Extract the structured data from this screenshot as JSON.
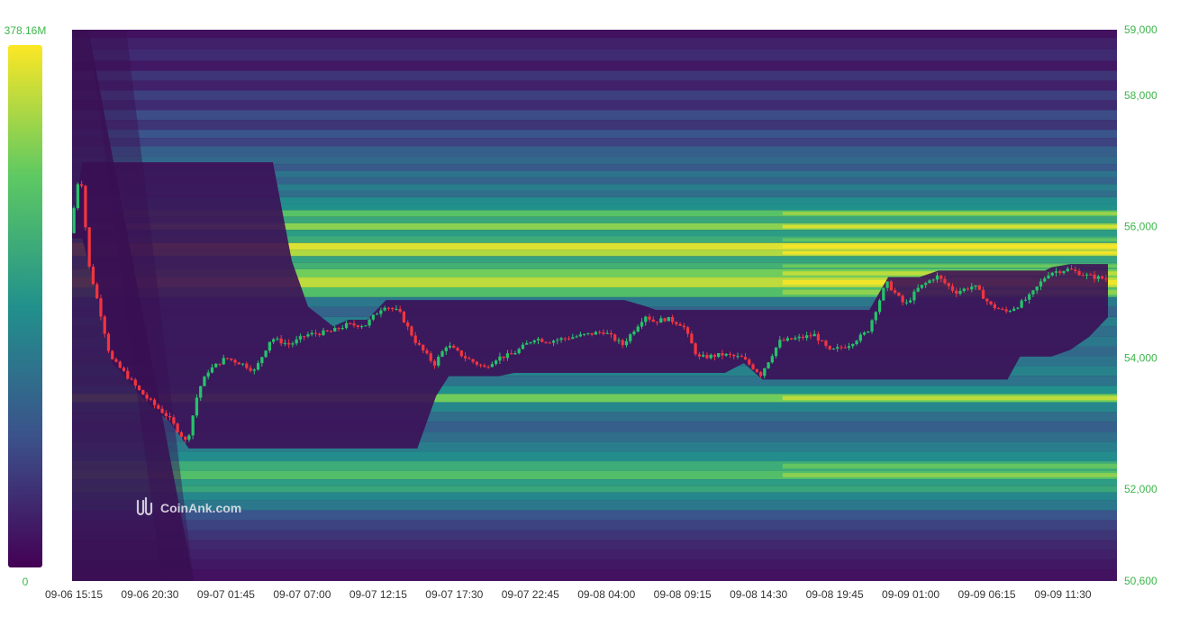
{
  "chart_data": {
    "type": "heatmap",
    "subtype": "liquidation-heatmap-with-candlesticks",
    "watermark": "CoinAnk.com",
    "colorbar": {
      "min_label": "0",
      "max_label": "378.16M",
      "label_color": "#3cb64a",
      "colors": [
        "#440154",
        "#3b528b",
        "#21918c",
        "#5ec962",
        "#fde725"
      ]
    },
    "y_axis": {
      "position": "right",
      "min": 50600,
      "max": 59000,
      "ticks": [
        "59,000",
        "58,000",
        "56,000",
        "54,000",
        "52,000",
        "50,600"
      ],
      "tick_values": [
        59000,
        58000,
        56000,
        54000,
        52000,
        50600
      ],
      "label_color": "#3cb64a"
    },
    "x_axis": {
      "ticks": [
        "09-06 15:15",
        "09-06 20:30",
        "09-07 01:45",
        "09-07 07:00",
        "09-07 12:15",
        "09-07 17:30",
        "09-07 22:45",
        "09-08 04:00",
        "09-08 09:15",
        "09-08 14:30",
        "09-08 19:45",
        "09-09 01:00",
        "09-09 06:15",
        "09-09 11:30"
      ],
      "label_color": "#333333"
    },
    "candle_colors": {
      "up": "#26c36a",
      "down": "#f0353f"
    },
    "price_path": {
      "t": [
        0,
        0.8,
        1.5,
        2.4,
        3.2,
        4.2,
        5.5,
        6.3,
        7.8,
        9.3,
        10.2,
        11.0,
        12.4,
        13.8,
        14.7,
        16.0,
        17.5,
        18.8,
        20.8,
        22.0,
        23.5,
        25.0,
        26.2,
        27.5,
        29.0,
        30.0,
        31.5,
        33.0,
        34.0,
        35.2,
        37.0,
        38.0,
        39.5,
        41.0,
        42.5,
        44.0,
        45.8,
        46.5,
        47.5,
        48.8,
        50.0,
        52.0,
        53.5,
        55.0,
        56.5,
        58.0,
        59.3,
        60.5,
        62.0,
        63.5,
        65.0,
        66.5,
        67.5,
        69.0,
        70.5,
        72.0,
        73.3,
        74.5,
        75.5,
        76.5,
        77.5,
        78.0,
        79.5,
        81.0,
        82.5
      ],
      "price": [
        55900,
        56900,
        55400,
        54700,
        54000,
        53800,
        53500,
        53350,
        53100,
        52700,
        53500,
        53800,
        54000,
        53900,
        53800,
        54300,
        54200,
        54350,
        54400,
        54500,
        54500,
        54800,
        54700,
        54250,
        53900,
        54200,
        54000,
        53850,
        54000,
        54050,
        54300,
        54250,
        54300,
        54350,
        54400,
        54200,
        54650,
        54550,
        54600,
        54500,
        54000,
        54050,
        54000,
        53750,
        54250,
        54300,
        54350,
        54100,
        54200,
        54400,
        55150,
        54800,
        55050,
        55250,
        55000,
        55100,
        54800,
        54700,
        54800,
        54950,
        55200,
        55300,
        55350,
        55250,
        55200
      ]
    },
    "price_bands": [
      {
        "price": 58950,
        "intensity": 0.05
      },
      {
        "price": 58800,
        "intensity": 0.1
      },
      {
        "price": 58600,
        "intensity": 0.13
      },
      {
        "price": 58450,
        "intensity": 0.07
      },
      {
        "price": 58300,
        "intensity": 0.16
      },
      {
        "price": 58150,
        "intensity": 0.1
      },
      {
        "price": 58000,
        "intensity": 0.19
      },
      {
        "price": 57850,
        "intensity": 0.13
      },
      {
        "price": 57700,
        "intensity": 0.23
      },
      {
        "price": 57550,
        "intensity": 0.16
      },
      {
        "price": 57400,
        "intensity": 0.26
      },
      {
        "price": 57300,
        "intensity": 0.2
      },
      {
        "price": 57150,
        "intensity": 0.3
      },
      {
        "price": 57000,
        "intensity": 0.34
      },
      {
        "price": 56900,
        "intensity": 0.28
      },
      {
        "price": 56800,
        "intensity": 0.38
      },
      {
        "price": 56700,
        "intensity": 0.32
      },
      {
        "price": 56600,
        "intensity": 0.42
      },
      {
        "price": 56500,
        "intensity": 0.36
      },
      {
        "price": 56400,
        "intensity": 0.48
      },
      {
        "price": 56300,
        "intensity": 0.5
      },
      {
        "price": 56200,
        "intensity": 0.72
      },
      {
        "price": 56100,
        "intensity": 0.6
      },
      {
        "price": 56000,
        "intensity": 0.82
      },
      {
        "price": 55900,
        "intensity": 0.55
      },
      {
        "price": 55800,
        "intensity": 0.62
      },
      {
        "price": 55700,
        "intensity": 0.95
      },
      {
        "price": 55600,
        "intensity": 0.88
      },
      {
        "price": 55500,
        "intensity": 0.58
      },
      {
        "price": 55400,
        "intensity": 0.64
      },
      {
        "price": 55300,
        "intensity": 0.78
      },
      {
        "price": 55150,
        "intensity": 0.9
      },
      {
        "price": 55000,
        "intensity": 0.7
      },
      {
        "price": 54850,
        "intensity": 0.4
      },
      {
        "price": 54700,
        "intensity": 0.32
      },
      {
        "price": 54550,
        "intensity": 0.42
      },
      {
        "price": 54400,
        "intensity": 0.36
      },
      {
        "price": 54250,
        "intensity": 0.4
      },
      {
        "price": 54100,
        "intensity": 0.34
      },
      {
        "price": 53950,
        "intensity": 0.38
      },
      {
        "price": 53800,
        "intensity": 0.44
      },
      {
        "price": 53650,
        "intensity": 0.38
      },
      {
        "price": 53500,
        "intensity": 0.5
      },
      {
        "price": 53400,
        "intensity": 0.78
      },
      {
        "price": 53250,
        "intensity": 0.46
      },
      {
        "price": 53100,
        "intensity": 0.36
      },
      {
        "price": 52950,
        "intensity": 0.3
      },
      {
        "price": 52800,
        "intensity": 0.36
      },
      {
        "price": 52650,
        "intensity": 0.42
      },
      {
        "price": 52500,
        "intensity": 0.48
      },
      {
        "price": 52350,
        "intensity": 0.62
      },
      {
        "price": 52200,
        "intensity": 0.7
      },
      {
        "price": 52100,
        "intensity": 0.55
      },
      {
        "price": 52000,
        "intensity": 0.6
      },
      {
        "price": 51900,
        "intensity": 0.46
      },
      {
        "price": 51750,
        "intensity": 0.4
      },
      {
        "price": 51600,
        "intensity": 0.26
      },
      {
        "price": 51450,
        "intensity": 0.2
      },
      {
        "price": 51300,
        "intensity": 0.16
      },
      {
        "price": 51150,
        "intensity": 0.12
      },
      {
        "price": 51000,
        "intensity": 0.1
      },
      {
        "price": 50850,
        "intensity": 0.07
      },
      {
        "price": 50700,
        "intensity": 0.05
      }
    ]
  }
}
